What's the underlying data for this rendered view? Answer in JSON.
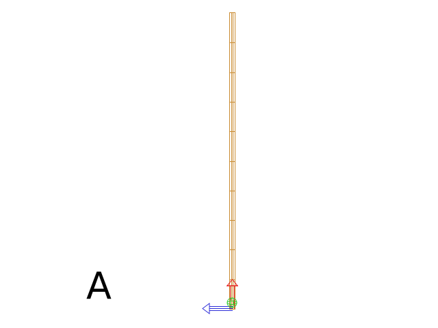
{
  "panel": {
    "label": "A"
  },
  "rod": {
    "color": "#c98a2e",
    "segment_count": 10
  },
  "gizmo": {
    "y_axis_color": "#e82020",
    "x_axis_color": "#2f2fd8",
    "origin_color": "#33cc33"
  }
}
